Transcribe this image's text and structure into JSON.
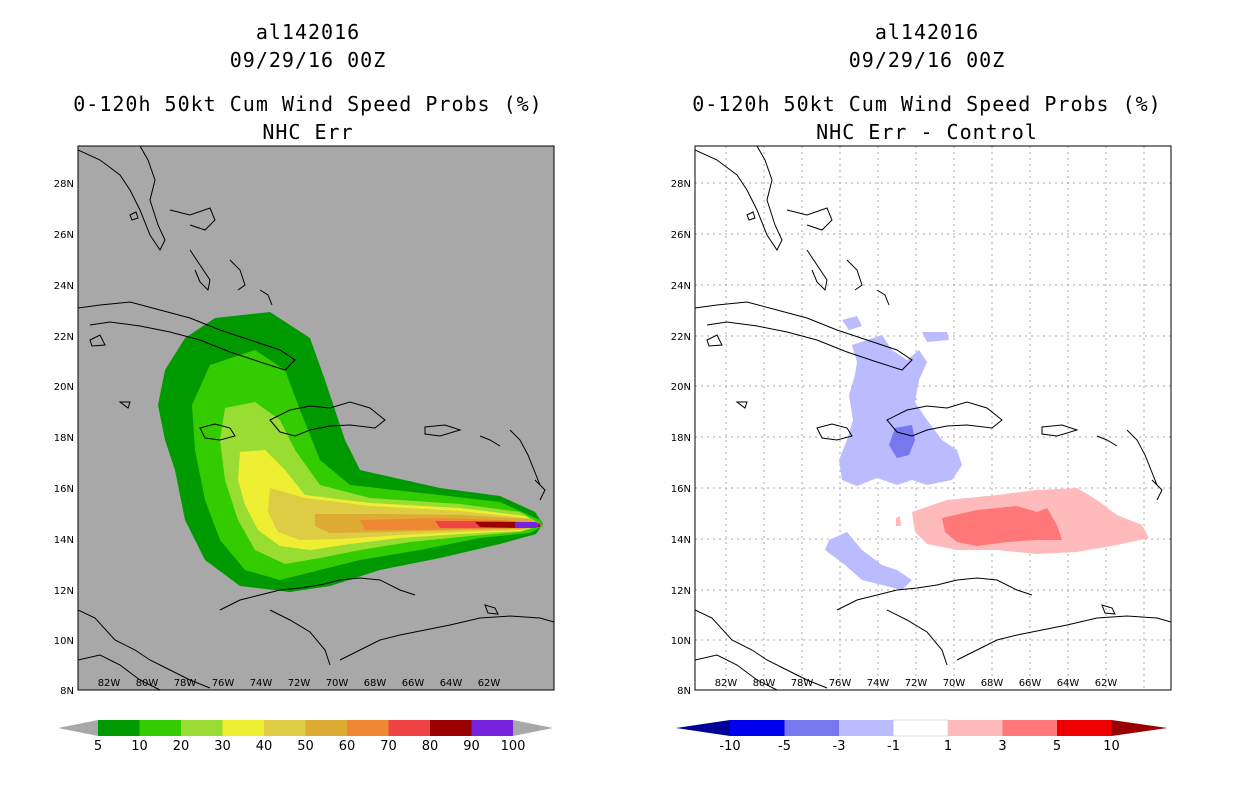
{
  "left_panel": {
    "title_line1": "al142016",
    "title_line2": "09/29/16 00Z",
    "title_line3": "0-120h 50kt Cum Wind Speed Probs (%)",
    "title_line4": "NHC Err",
    "colorbar_labels": [
      "5",
      "10",
      "20",
      "30",
      "40",
      "50",
      "60",
      "70",
      "80",
      "90",
      "100"
    ],
    "colorbar_colors": [
      "#009900",
      "#33cc00",
      "#99dd33",
      "#eeee33",
      "#ddcc44",
      "#ddaa33",
      "#ee8833",
      "#ee4444",
      "#990000",
      "#7722dd"
    ],
    "background_color": "#a8a8a8"
  },
  "right_panel": {
    "title_line1": "al142016",
    "title_line2": "09/29/16 00Z",
    "title_line3": "0-120h 50kt Cum Wind Speed Probs (%)",
    "title_line4": "NHC Err - Control",
    "colorbar_labels": [
      "-10",
      "-5",
      "-3",
      "-1",
      "1",
      "3",
      "5",
      "10"
    ],
    "colorbar_colors": [
      "#000099",
      "#0000ee",
      "#7777ee",
      "#bbbbff",
      "#ffffff",
      "#ffbbbb",
      "#ff7777",
      "#ee0000",
      "#990000"
    ]
  },
  "axes": {
    "lat_labels": [
      "28N",
      "26N",
      "24N",
      "22N",
      "20N",
      "18N",
      "16N",
      "14N",
      "12N",
      "10N",
      "8N"
    ],
    "lon_labels": [
      "82W",
      "80W",
      "78W",
      "76W",
      "74W",
      "72W",
      "70W",
      "68W",
      "66W",
      "64W",
      "62W"
    ]
  }
}
